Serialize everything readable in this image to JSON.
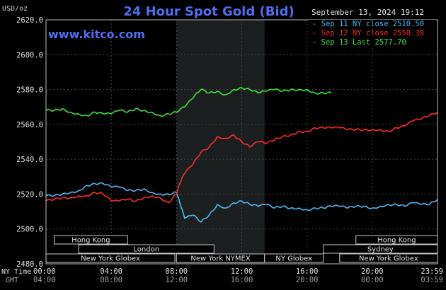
{
  "title": "24 Hour Spot Gold (Bid)",
  "unit": "USD/oz",
  "watermark": "www.kitco.com",
  "timestamp": "September 13, 2024 19:12",
  "legend": [
    {
      "label": "Sep 11 NY close 2510.50",
      "color": "#4fb8f0"
    },
    {
      "label": "Sep 12 NY close 2550.38",
      "color": "#ff2a2a"
    },
    {
      "label": "Sep 13 Last 2577.70",
      "color": "#3ee23e"
    }
  ],
  "time_axis": {
    "ny_label": "NY Time",
    "gmt_label": "GMT",
    "ny_ticks": [
      "00:00",
      "04:00",
      "08:00",
      "12:00",
      "16:00",
      "20:00",
      "23:59"
    ],
    "gmt_ticks": [
      "04:00",
      "08:00",
      "12:00",
      "16:00",
      "20:00",
      "00:00",
      "03:59"
    ]
  },
  "sessions": [
    {
      "label": "Hong Kong",
      "row": 0,
      "start": 0.5,
      "end": 5.0
    },
    {
      "label": "Hong Kong",
      "row": 0,
      "start": 19.0,
      "end": 24.0
    },
    {
      "label": "London",
      "row": 1,
      "start": 0.0,
      "end": 0.0
    },
    {
      "label": "London",
      "row": 1,
      "start": 2.0,
      "end": 10.3
    },
    {
      "label": "Sydney",
      "row": 1,
      "start": 17.0,
      "end": 24.0
    },
    {
      "label": "New York Globex",
      "row": 2,
      "start": 0.0,
      "end": 7.9
    },
    {
      "label": "New York NYMEX",
      "row": 2,
      "start": 8.0,
      "end": 13.4
    },
    {
      "label": "NY Globex",
      "row": 2,
      "start": 13.4,
      "end": 17.0
    },
    {
      "label": "New York Globex",
      "row": 2,
      "start": 18.0,
      "end": 24.0
    }
  ],
  "chart_data": {
    "type": "line",
    "title": "24 Hour Spot Gold (Bid)",
    "xlabel": "NY Time",
    "ylabel": "USD/oz",
    "xlim": [
      0,
      24
    ],
    "ylim": [
      2480,
      2620
    ],
    "yticks": [
      "2480.0",
      "2500.0",
      "2520.0",
      "2540.0",
      "2560.0",
      "2580.0",
      "2600.0",
      "2620.0"
    ],
    "grid": true,
    "series": [
      {
        "name": "Sep 11 NY close 2510.50",
        "color": "#4fb8f0",
        "x": [
          0,
          0.5,
          1,
          1.5,
          2,
          2.5,
          3,
          3.5,
          4,
          4.5,
          5,
          5.5,
          6,
          6.5,
          7,
          7.5,
          8,
          8.2,
          8.5,
          9,
          9.5,
          10,
          10.5,
          11,
          11.5,
          12,
          12.5,
          13,
          13.5,
          14,
          14.5,
          15,
          15.5,
          16,
          16.5,
          17,
          17.5,
          18,
          18.5,
          19,
          19.5,
          20,
          20.5,
          21,
          21.5,
          22,
          22.5,
          23,
          23.5,
          24
        ],
        "values": [
          2519,
          2519,
          2520,
          2521,
          2522,
          2525,
          2526,
          2526,
          2524,
          2524,
          2522,
          2522,
          2523,
          2521,
          2520,
          2520,
          2521,
          2515,
          2506,
          2508,
          2504,
          2508,
          2514,
          2512,
          2515,
          2516,
          2514,
          2513,
          2514,
          2512,
          2513,
          2512,
          2512,
          2511,
          2512,
          2512,
          2513,
          2513,
          2512,
          2513,
          2513,
          2512,
          2513,
          2514,
          2514,
          2513,
          2515,
          2514,
          2514,
          2517
        ]
      },
      {
        "name": "Sep 12 NY close 2550.38",
        "color": "#ff2a2a",
        "x": [
          0,
          0.5,
          1,
          1.5,
          2,
          2.5,
          3,
          3.5,
          4,
          4.5,
          5,
          5.5,
          6,
          6.5,
          7,
          7.5,
          8,
          8.2,
          8.5,
          9,
          9.5,
          10,
          10.5,
          11,
          11.5,
          12,
          12.5,
          13,
          13.5,
          14,
          14.5,
          15,
          15.5,
          16,
          16.5,
          17,
          17.5,
          18,
          18.5,
          19,
          19.5,
          20,
          20.5,
          21,
          21.5,
          22,
          22.5,
          23,
          23.5,
          24
        ],
        "values": [
          2516,
          2517,
          2518,
          2518,
          2519,
          2519,
          2521,
          2520,
          2516,
          2516,
          2517,
          2516,
          2518,
          2519,
          2518,
          2515,
          2520,
          2526,
          2532,
          2537,
          2544,
          2547,
          2553,
          2552,
          2554,
          2550,
          2547,
          2550,
          2549,
          2551,
          2553,
          2554,
          2556,
          2556,
          2558,
          2558,
          2558,
          2558,
          2557,
          2557,
          2557,
          2557,
          2557,
          2556,
          2558,
          2559,
          2562,
          2563,
          2565,
          2567
        ]
      },
      {
        "name": "Sep 13 Last 2577.70",
        "color": "#3ee23e",
        "x": [
          0,
          0.5,
          1,
          1.5,
          2,
          2.5,
          3,
          3.5,
          4,
          4.5,
          5,
          5.5,
          6,
          6.5,
          7,
          7.5,
          8,
          8.5,
          9,
          9.5,
          10,
          10.5,
          11,
          11.5,
          12,
          12.5,
          13,
          13.5,
          14,
          14.5,
          15,
          15.5,
          16,
          16.5,
          17,
          17.5
        ],
        "values": [
          2568,
          2568,
          2569,
          2567,
          2566,
          2565,
          2567,
          2566,
          2566,
          2568,
          2567,
          2569,
          2568,
          2567,
          2565,
          2566,
          2567,
          2570,
          2575,
          2580,
          2578,
          2579,
          2577,
          2580,
          2581,
          2580,
          2578,
          2579,
          2580,
          2579,
          2580,
          2580,
          2580,
          2578,
          2578,
          2578
        ]
      }
    ]
  }
}
